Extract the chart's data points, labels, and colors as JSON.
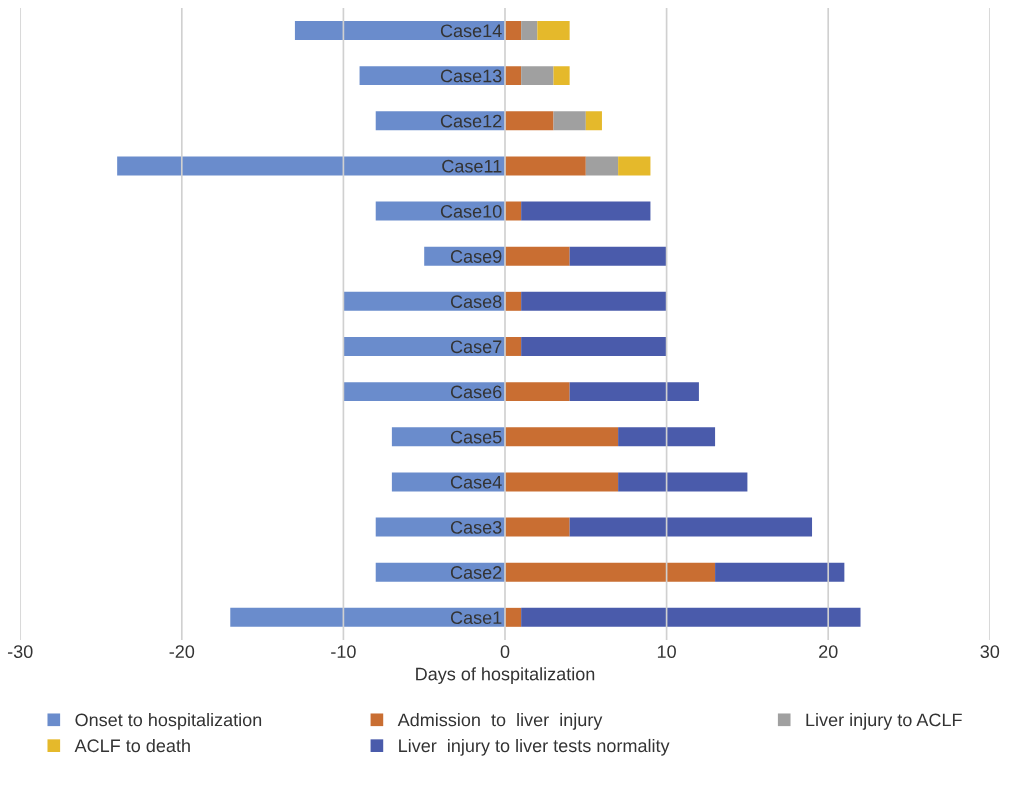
{
  "chart_data": {
    "type": "bar",
    "orientation": "horizontal",
    "stacked": true,
    "categories": [
      "Case14",
      "Case13",
      "Case12",
      "Case11",
      "Case10",
      "Case9",
      "Case8",
      "Case7",
      "Case6",
      "Case5",
      "Case4",
      "Case3",
      "Case2",
      "Case1"
    ],
    "series": [
      {
        "name": "Onset to hospitalization",
        "color": "#6a8ccc",
        "values": [
          -13,
          -9,
          -8,
          -24,
          -8,
          -5,
          -10,
          -10,
          -10,
          -7,
          -7,
          -8,
          -8,
          -17
        ]
      },
      {
        "name": "Admission  to  liver  injury",
        "color": "#c96e32",
        "values": [
          1,
          1,
          3,
          5,
          1,
          4,
          1,
          1,
          4,
          7,
          7,
          4,
          13,
          1
        ]
      },
      {
        "name": "Liver injury to ACLF",
        "color": "#a0a0a0",
        "values": [
          1,
          2,
          2,
          2,
          null,
          null,
          null,
          null,
          null,
          null,
          null,
          null,
          null,
          null
        ]
      },
      {
        "name": "ACLF to death",
        "color": "#e5b92b",
        "values": [
          2,
          1,
          1,
          2,
          null,
          null,
          null,
          null,
          null,
          null,
          null,
          null,
          null,
          null
        ]
      },
      {
        "name": "Liver  injury to liver tests normality",
        "color": "#4a5bab",
        "values": [
          null,
          null,
          null,
          null,
          8,
          6,
          9,
          9,
          8,
          6,
          8,
          15,
          8,
          21
        ]
      }
    ],
    "xlabel": "Days of hospitalization",
    "xlim": [
      -30,
      30
    ],
    "xticks": [
      -30,
      -20,
      -10,
      0,
      10,
      20,
      30
    ],
    "grid": "x",
    "legend": "bottom"
  }
}
